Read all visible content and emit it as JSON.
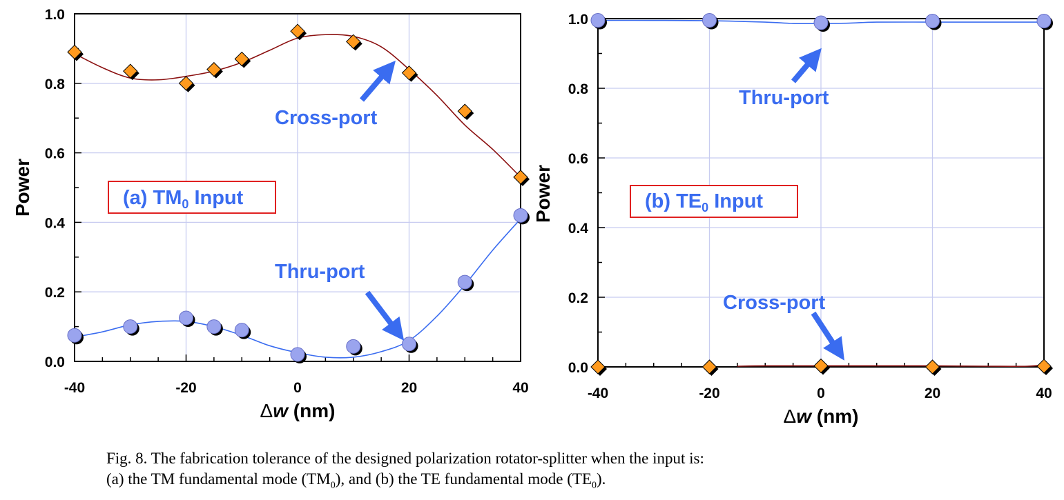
{
  "colors": {
    "thru": "#3a6cf0",
    "cross_line": "#8b1010",
    "marker_orange": "#ff9a1e",
    "marker_blue": "#9aa4ee",
    "grid": "#c8ccf0",
    "annot_box": "#e02020"
  },
  "chart_data": [
    {
      "type": "scatter",
      "panel_label": "(a) TM",
      "panel_label_sub": "0",
      "panel_label_suffix": " Input",
      "xlabel_sym": "Δ",
      "xlabel_var": "w",
      "xlabel_unit": " (nm)",
      "ylabel": "Power",
      "xlim": [
        -40,
        40
      ],
      "ylim": [
        0,
        1.0
      ],
      "xticks": [
        "-40",
        "-20",
        "0",
        "20",
        "40"
      ],
      "yticks": [
        "0.0",
        "0.2",
        "0.4",
        "0.6",
        "0.8",
        "1.0"
      ],
      "grid": true,
      "series": [
        {
          "name": "Cross-port",
          "marker": "diamond",
          "x": [
            -40,
            -30,
            -20,
            -15,
            -10,
            0,
            10,
            20,
            30,
            40
          ],
          "y": [
            0.89,
            0.835,
            0.8,
            0.84,
            0.87,
            0.95,
            0.92,
            0.83,
            0.72,
            0.53
          ],
          "curve_x": [
            -40,
            -35,
            -30,
            -25,
            -20,
            -15,
            -10,
            -5,
            0,
            5,
            10,
            15,
            20,
            25,
            30,
            35,
            40
          ],
          "curve_y": [
            0.885,
            0.845,
            0.815,
            0.81,
            0.82,
            0.835,
            0.86,
            0.895,
            0.93,
            0.94,
            0.935,
            0.905,
            0.84,
            0.765,
            0.68,
            0.61,
            0.53
          ]
        },
        {
          "name": "Thru-port",
          "marker": "circle",
          "x": [
            -40,
            -30,
            -20,
            -15,
            -10,
            0,
            10,
            20,
            30,
            40
          ],
          "y": [
            0.075,
            0.1,
            0.125,
            0.1,
            0.09,
            0.02,
            0.043,
            0.05,
            0.228,
            0.42
          ],
          "curve_x": [
            -40,
            -35,
            -30,
            -25,
            -20,
            -15,
            -10,
            -5,
            0,
            5,
            10,
            15,
            20,
            25,
            30,
            35,
            40
          ],
          "curve_y": [
            0.07,
            0.085,
            0.105,
            0.115,
            0.115,
            0.1,
            0.075,
            0.045,
            0.025,
            0.012,
            0.012,
            0.028,
            0.06,
            0.13,
            0.22,
            0.32,
            0.41
          ]
        }
      ],
      "annotations": [
        {
          "text": "Cross-port",
          "x": -18,
          "y": 0.7
        },
        {
          "text": "Thru-port",
          "x": -18,
          "y": 0.26
        }
      ]
    },
    {
      "type": "scatter",
      "panel_label": "(b) TE",
      "panel_label_sub": "0",
      "panel_label_suffix": " Input",
      "xlabel_sym": "Δ",
      "xlabel_var": "w",
      "xlabel_unit": " (nm)",
      "ylabel": "Power",
      "xlim": [
        -40,
        40
      ],
      "ylim": [
        0,
        1.0
      ],
      "xticks": [
        "-40",
        "-20",
        "0",
        "20",
        "40"
      ],
      "yticks": [
        "0.0",
        "0.2",
        "0.4",
        "0.6",
        "0.8",
        "1.0"
      ],
      "grid": true,
      "series": [
        {
          "name": "Thru-port",
          "marker": "circle",
          "x": [
            -40,
            -20,
            0,
            20,
            40
          ],
          "y": [
            0.995,
            0.995,
            0.988,
            0.993,
            0.993
          ],
          "curve_x": [
            -40,
            -30,
            -20,
            -10,
            -5,
            0,
            5,
            10,
            20,
            30,
            40
          ],
          "curve_y": [
            0.995,
            0.995,
            0.994,
            0.99,
            0.986,
            0.986,
            0.987,
            0.99,
            0.99,
            0.99,
            0.99
          ]
        },
        {
          "name": "Cross-port",
          "marker": "diamond",
          "x": [
            -40,
            -20,
            0,
            20,
            40
          ],
          "y": [
            0.0,
            0.0,
            0.003,
            0.0,
            0.002
          ],
          "curve_x": [
            -15,
            -10,
            0,
            10,
            20,
            30,
            37,
            40
          ],
          "curve_y": [
            0.002,
            0.003,
            0.003,
            0.003,
            0.003,
            0.002,
            0.002,
            0.006
          ]
        }
      ],
      "annotations": [
        {
          "text": "Thru-port",
          "x": -7.5,
          "y": 0.77
        },
        {
          "text": "Cross-port",
          "x": -7.5,
          "y": 0.18
        }
      ]
    }
  ],
  "caption": {
    "line1": "Fig. 8. The fabrication tolerance of the designed polarization rotator-splitter when the input is:",
    "line2_pre": "(a) the TM fundamental mode (TM",
    "line2_sub1": "0",
    "line2_mid": "), and (b) the TE fundamental mode (TE",
    "line2_sub2": "0",
    "line2_post": ")."
  }
}
